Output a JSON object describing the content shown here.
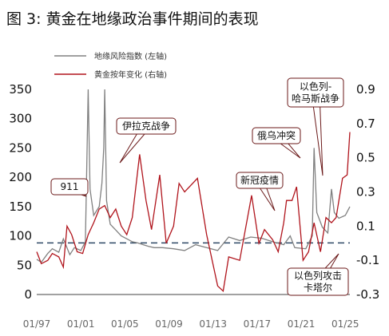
{
  "title": "图 3: 黄金在地缘政治事件期间的表现",
  "colors": {
    "risk": "#808080",
    "gold": "#b0141c",
    "ref": "#2f4a66",
    "annot_border": "#6b1a1a"
  },
  "chart_data": {
    "type": "line",
    "legend_placement": "top-left",
    "grid": false,
    "x_range": [
      "1997-01",
      "2025-06"
    ],
    "x_ticks": [
      "01/97",
      "01/01",
      "01/05",
      "01/09",
      "01/13",
      "01/17",
      "01/21",
      "01/25"
    ],
    "y_left": {
      "range": [
        0,
        350
      ],
      "ticks": [
        "0",
        "50",
        "100",
        "150",
        "200",
        "250",
        "300",
        "350"
      ]
    },
    "y_right": {
      "range": [
        -0.3,
        0.9
      ],
      "ticks": [
        "-0.3",
        "-0.1",
        "0.1",
        "0.3",
        "0.5",
        "0.7",
        "0.9"
      ]
    },
    "reference_line": {
      "axis": "left",
      "value": 88
    },
    "series": [
      {
        "name": "地缘风险指数 (左轴)",
        "axis": "left",
        "color": "#808080",
        "points": [
          [
            "1997-01",
            60
          ],
          [
            "1997-06",
            55
          ],
          [
            "1998-01",
            70
          ],
          [
            "1998-06",
            78
          ],
          [
            "1999-01",
            72
          ],
          [
            "1999-06",
            95
          ],
          [
            "2000-01",
            68
          ],
          [
            "2000-06",
            80
          ],
          [
            "2001-01",
            75
          ],
          [
            "2001-06",
            90
          ],
          [
            "2001-09",
            350
          ],
          [
            "2001-11",
            180
          ],
          [
            "2002-03",
            135
          ],
          [
            "2002-09",
            150
          ],
          [
            "2002-12",
            190
          ],
          [
            "2003-02",
            250
          ],
          [
            "2003-03",
            350
          ],
          [
            "2003-05",
            160
          ],
          [
            "2003-09",
            120
          ],
          [
            "2004-03",
            110
          ],
          [
            "2004-09",
            100
          ],
          [
            "2005-03",
            95
          ],
          [
            "2005-09",
            90
          ],
          [
            "2006-03",
            88
          ],
          [
            "2006-09",
            85
          ],
          [
            "2007-03",
            82
          ],
          [
            "2007-09",
            80
          ],
          [
            "2008-06",
            80
          ],
          [
            "2009-06",
            78
          ],
          [
            "2010-06",
            75
          ],
          [
            "2011-06",
            85
          ],
          [
            "2012-06",
            80
          ],
          [
            "2013-06",
            75
          ],
          [
            "2014-06",
            98
          ],
          [
            "2015-06",
            92
          ],
          [
            "2016-06",
            98
          ],
          [
            "2017-06",
            96
          ],
          [
            "2018-06",
            90
          ],
          [
            "2019-06",
            85
          ],
          [
            "2020-01",
            100
          ],
          [
            "2020-06",
            80
          ],
          [
            "2021-06",
            78
          ],
          [
            "2022-01",
            100
          ],
          [
            "2022-03",
            250
          ],
          [
            "2022-06",
            140
          ],
          [
            "2022-12",
            115
          ],
          [
            "2023-06",
            105
          ],
          [
            "2023-10",
            180
          ],
          [
            "2024-01",
            140
          ],
          [
            "2024-06",
            130
          ],
          [
            "2025-01",
            135
          ],
          [
            "2025-06",
            150
          ]
        ]
      },
      {
        "name": "黄金按年变化 (右轴)",
        "axis": "right",
        "color": "#b0141c",
        "points": [
          [
            "1997-01",
            -0.05
          ],
          [
            "1997-06",
            -0.12
          ],
          [
            "1998-01",
            -0.1
          ],
          [
            "1998-06",
            -0.06
          ],
          [
            "1999-01",
            -0.08
          ],
          [
            "1999-06",
            -0.14
          ],
          [
            "1999-10",
            0.1
          ],
          [
            "2000-03",
            0.05
          ],
          [
            "2000-09",
            -0.05
          ],
          [
            "2001-03",
            -0.06
          ],
          [
            "2001-09",
            0.05
          ],
          [
            "2002-03",
            0.12
          ],
          [
            "2002-09",
            0.2
          ],
          [
            "2003-03",
            0.22
          ],
          [
            "2003-09",
            0.15
          ],
          [
            "2004-03",
            0.2
          ],
          [
            "2004-09",
            0.1
          ],
          [
            "2005-03",
            0.05
          ],
          [
            "2005-09",
            0.15
          ],
          [
            "2006-05",
            0.52
          ],
          [
            "2006-12",
            0.25
          ],
          [
            "2007-06",
            0.08
          ],
          [
            "2008-03",
            0.4
          ],
          [
            "2008-10",
            0.0
          ],
          [
            "2009-06",
            0.1
          ],
          [
            "2009-12",
            0.35
          ],
          [
            "2010-06",
            0.3
          ],
          [
            "2011-08",
            0.38
          ],
          [
            "2012-06",
            0.05
          ],
          [
            "2013-06",
            -0.25
          ],
          [
            "2013-12",
            -0.28
          ],
          [
            "2014-06",
            -0.08
          ],
          [
            "2015-06",
            -0.1
          ],
          [
            "2016-07",
            0.28
          ],
          [
            "2017-03",
            0.0
          ],
          [
            "2017-09",
            0.08
          ],
          [
            "2018-06",
            0.02
          ],
          [
            "2018-12",
            -0.05
          ],
          [
            "2019-06",
            0.12
          ],
          [
            "2019-09",
            0.25
          ],
          [
            "2020-03",
            0.25
          ],
          [
            "2020-08",
            0.33
          ],
          [
            "2021-03",
            -0.1
          ],
          [
            "2021-09",
            -0.05
          ],
          [
            "2022-03",
            0.12
          ],
          [
            "2022-10",
            -0.05
          ],
          [
            "2023-04",
            0.15
          ],
          [
            "2023-10",
            0.12
          ],
          [
            "2024-03",
            0.15
          ],
          [
            "2024-10",
            0.38
          ],
          [
            "2025-03",
            0.4
          ],
          [
            "2025-06",
            0.65
          ]
        ]
      }
    ],
    "annotations": [
      {
        "lines": [
          "911"
        ],
        "date": "2001-09"
      },
      {
        "lines": [
          "伊拉克战争"
        ],
        "date": "2003-03"
      },
      {
        "lines": [
          "新冠疫情"
        ],
        "date": "2020-03"
      },
      {
        "lines": [
          "俄乌冲突"
        ],
        "date": "2022-03"
      },
      {
        "lines": [
          "以色列-",
          "哈马斯战争"
        ],
        "date": "2023-10"
      },
      {
        "lines": [
          "以色列攻击",
          "卡塔尔"
        ],
        "date": "2025-09"
      }
    ]
  }
}
